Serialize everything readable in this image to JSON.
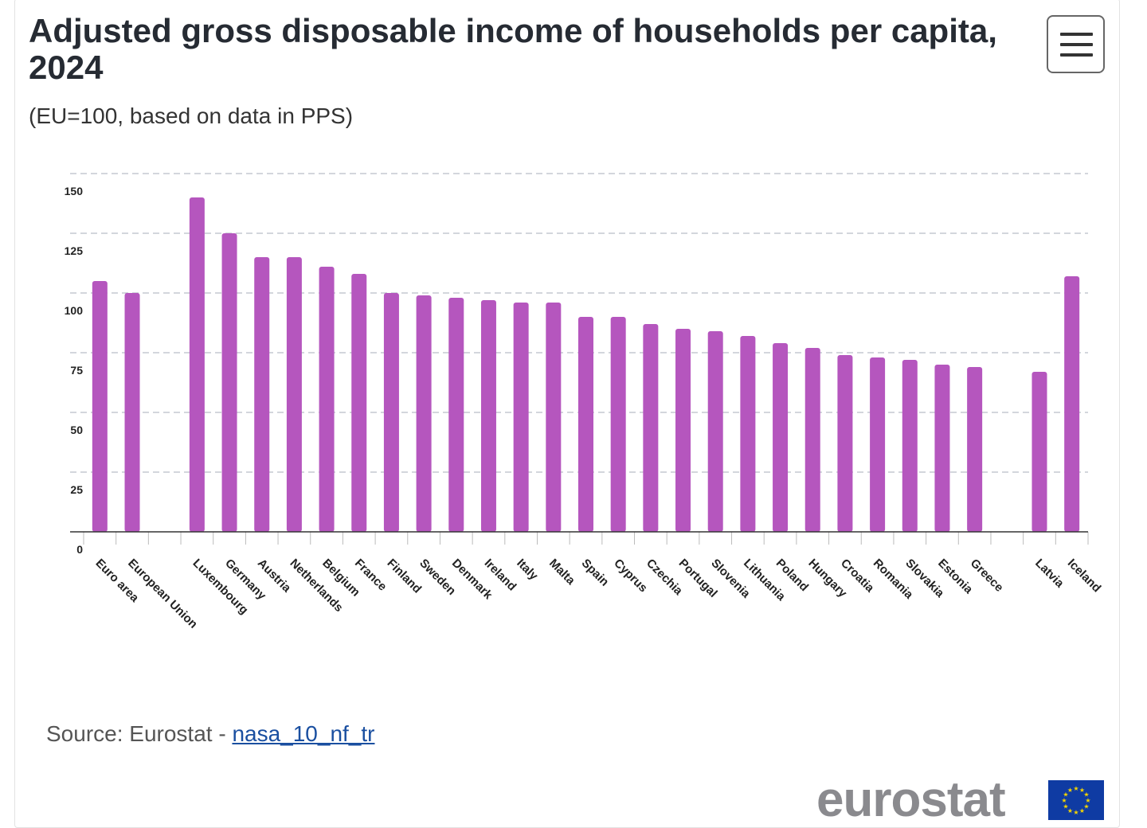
{
  "title": "Adjusted gross disposable income of households per capita, 2024",
  "subtitle": "(EU=100, based on data in PPS)",
  "source": {
    "prefix": "Source: Eurostat - ",
    "link": "nasa_10_nf_tr"
  },
  "logo": "eurostat",
  "colors": {
    "bar": "#b556be",
    "grid": "#b9bec8",
    "flag": "#0f3ba3",
    "star": "#f5d400"
  },
  "icons": {
    "menu": "hamburger-menu-icon",
    "flag": "eu-flag-icon"
  },
  "chart_data": {
    "type": "bar",
    "title": "Adjusted gross disposable income of households per capita, 2024",
    "subtitle": "(EU=100, based on data in PPS)",
    "categories": [
      "Euro area",
      "European Union",
      "Luxembourg",
      "Germany",
      "Austria",
      "Netherlands",
      "Belgium",
      "France",
      "Finland",
      "Sweden",
      "Denmark",
      "Ireland",
      "Italy",
      "Malta",
      "Spain",
      "Cyprus",
      "Czechia",
      "Portugal",
      "Slovenia",
      "Lithuania",
      "Poland",
      "Hungary",
      "Croatia",
      "Romania",
      "Slovakia",
      "Estonia",
      "Greece",
      "Latvia",
      "Iceland"
    ],
    "values": [
      105,
      100,
      140,
      125,
      115,
      115,
      111,
      108,
      100,
      99,
      98,
      97,
      96,
      96,
      90,
      90,
      87,
      85,
      84,
      82,
      79,
      77,
      74,
      73,
      72,
      70,
      69,
      67,
      107
    ],
    "yticks": [
      "0",
      "25",
      "50",
      "75",
      "100",
      "125",
      "150"
    ],
    "ylim": [
      0,
      150
    ],
    "grid": true,
    "legend": "none"
  }
}
